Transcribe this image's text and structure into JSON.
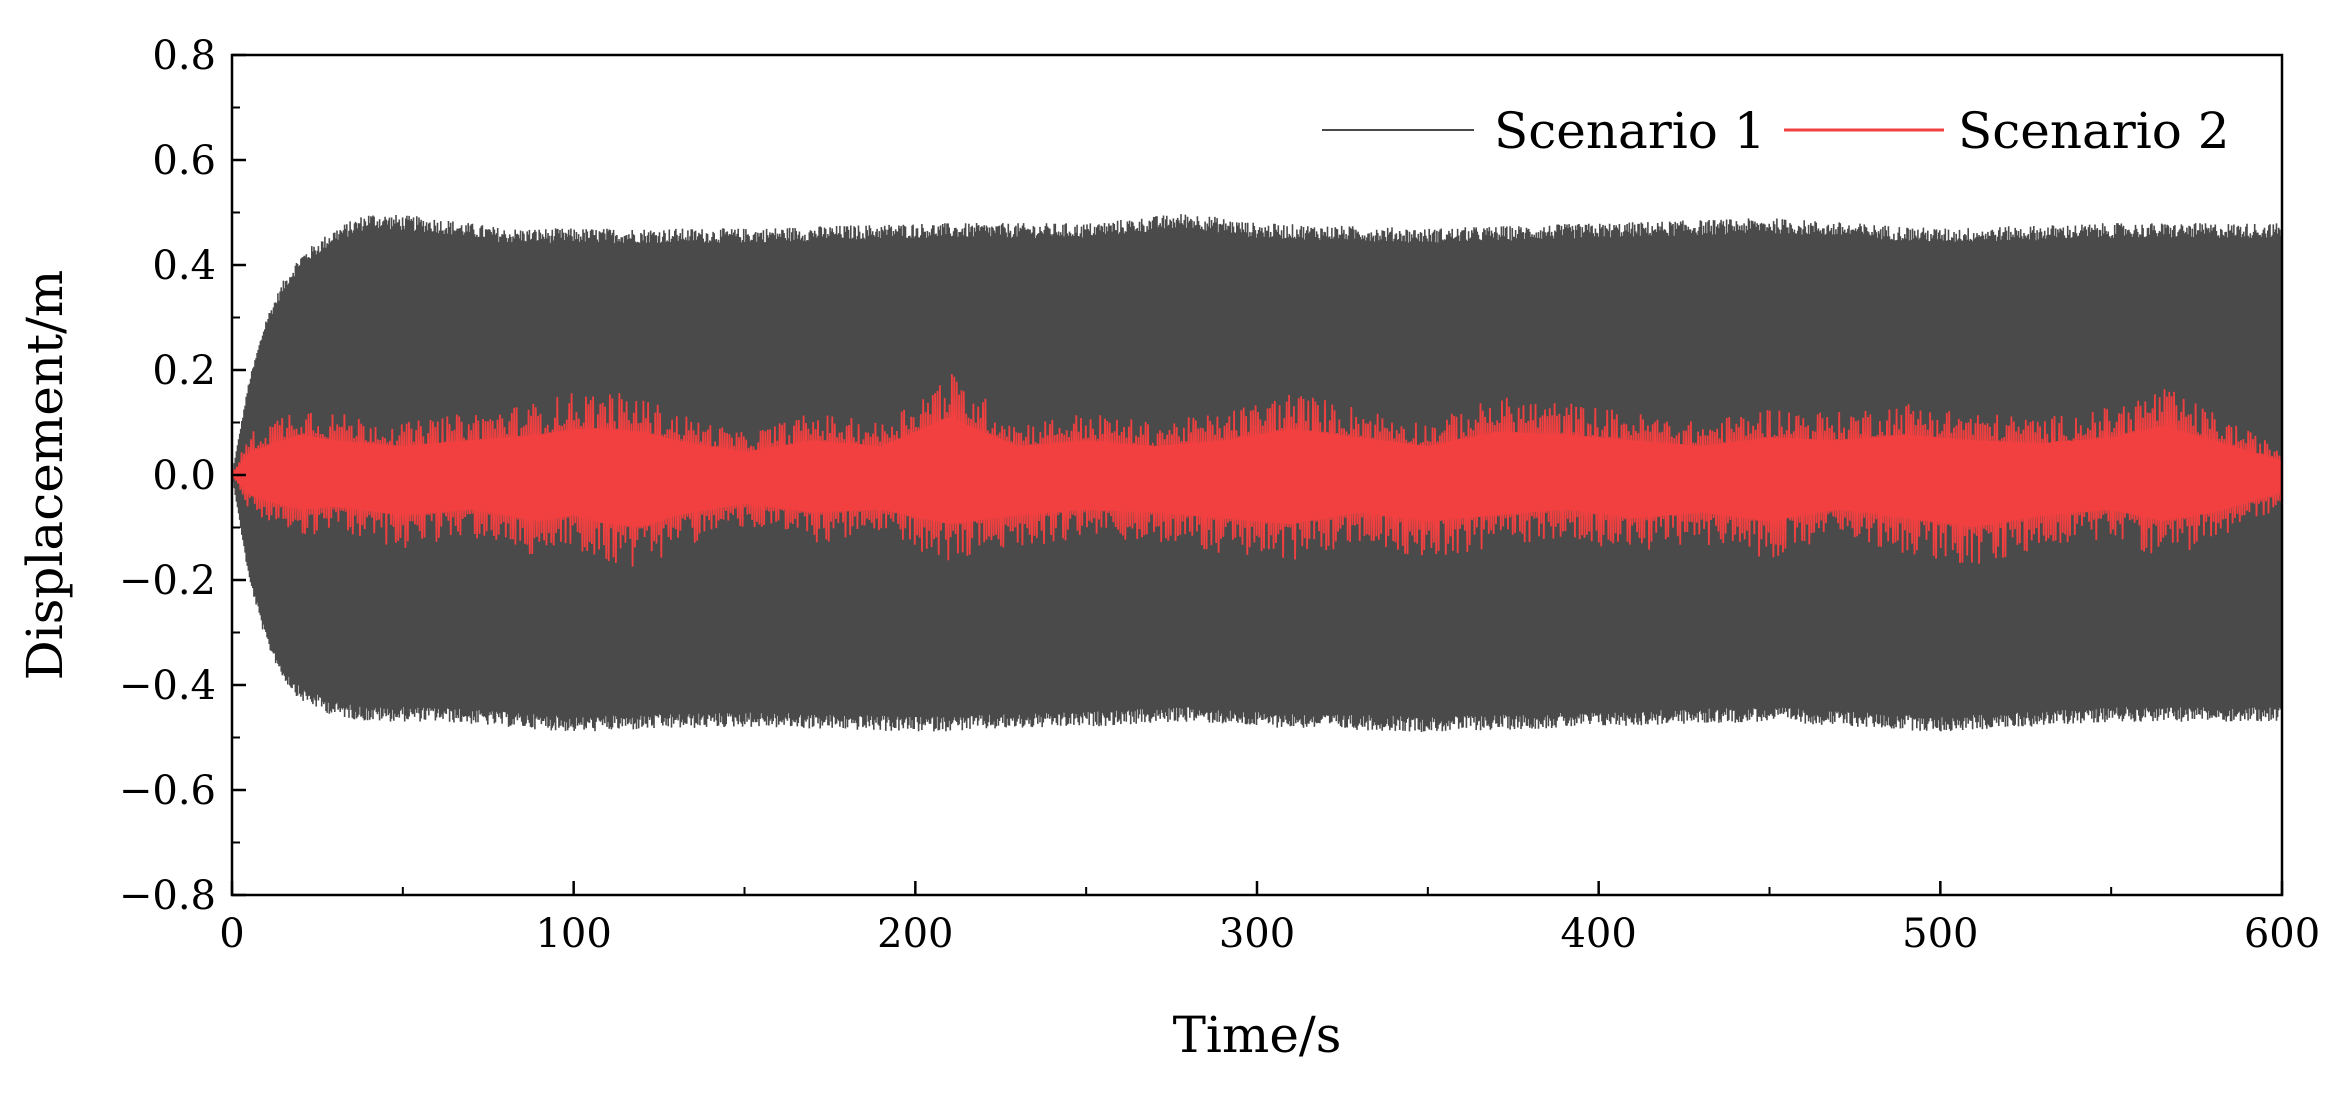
{
  "chart_data": {
    "type": "line",
    "title": "",
    "xlabel": "Time/s",
    "ylabel": "Displacement/m",
    "xlim": [
      0,
      600
    ],
    "ylim": [
      -0.8,
      0.8
    ],
    "xticks": [
      0,
      100,
      200,
      300,
      400,
      500,
      600
    ],
    "xtick_labels": [
      "0",
      "100",
      "200",
      "300",
      "400",
      "500",
      "600"
    ],
    "yticks": [
      -0.8,
      -0.6,
      -0.4,
      -0.2,
      0.0,
      0.2,
      0.4,
      0.6,
      0.8
    ],
    "ytick_labels": [
      "−0.8",
      "−0.6",
      "−0.4",
      "−0.2",
      "0.0",
      "0.2",
      "0.4",
      "0.6",
      "0.8"
    ],
    "grid": false,
    "legend_position": "top-right",
    "series": [
      {
        "name": "Scenario 1",
        "color": "#4a4a4a",
        "amplitude_envelope": {
          "t": [
            0,
            5,
            10,
            15,
            20,
            30,
            40,
            60,
            80,
            100,
            150,
            200,
            250,
            280,
            300,
            350,
            400,
            450,
            500,
            550,
            600
          ],
          "upper": [
            0.0,
            0.18,
            0.3,
            0.37,
            0.42,
            0.47,
            0.5,
            0.49,
            0.47,
            0.47,
            0.47,
            0.48,
            0.48,
            0.5,
            0.48,
            0.47,
            0.48,
            0.49,
            0.47,
            0.48,
            0.48
          ],
          "lower": [
            0.0,
            -0.2,
            -0.32,
            -0.39,
            -0.43,
            -0.46,
            -0.47,
            -0.47,
            -0.48,
            -0.49,
            -0.48,
            -0.49,
            -0.48,
            -0.47,
            -0.48,
            -0.49,
            -0.48,
            -0.47,
            -0.49,
            -0.47,
            -0.47
          ]
        },
        "inner_band": {
          "t": [
            0,
            20,
            50,
            100,
            150,
            200,
            250,
            300,
            350,
            400,
            450,
            500,
            550,
            600
          ],
          "upper": [
            0.0,
            0.14,
            0.17,
            0.2,
            0.18,
            0.2,
            0.22,
            0.21,
            0.18,
            0.2,
            0.24,
            0.19,
            0.2,
            0.22
          ],
          "lower": [
            0.0,
            -0.14,
            -0.16,
            -0.2,
            -0.18,
            -0.2,
            -0.2,
            -0.2,
            -0.18,
            -0.2,
            -0.22,
            -0.2,
            -0.2,
            -0.22
          ]
        }
      },
      {
        "name": "Scenario 2",
        "color": "#f24040",
        "amplitude_envelope": {
          "t": [
            0,
            5,
            10,
            20,
            30,
            50,
            70,
            90,
            100,
            110,
            120,
            130,
            150,
            170,
            190,
            210,
            230,
            250,
            270,
            290,
            310,
            330,
            350,
            370,
            390,
            410,
            430,
            450,
            470,
            490,
            510,
            530,
            550,
            565,
            580,
            600
          ],
          "upper": [
            0.0,
            0.08,
            0.1,
            0.14,
            0.12,
            0.1,
            0.12,
            0.14,
            0.16,
            0.16,
            0.15,
            0.12,
            0.08,
            0.12,
            0.1,
            0.2,
            0.1,
            0.12,
            0.1,
            0.12,
            0.16,
            0.13,
            0.1,
            0.15,
            0.14,
            0.12,
            0.1,
            0.13,
            0.12,
            0.14,
            0.12,
            0.11,
            0.13,
            0.17,
            0.12,
            0.05
          ],
          "lower": [
            0.0,
            -0.07,
            -0.09,
            -0.12,
            -0.11,
            -0.14,
            -0.12,
            -0.16,
            -0.14,
            -0.17,
            -0.18,
            -0.14,
            -0.1,
            -0.13,
            -0.12,
            -0.17,
            -0.14,
            -0.12,
            -0.13,
            -0.15,
            -0.17,
            -0.13,
            -0.16,
            -0.14,
            -0.12,
            -0.15,
            -0.13,
            -0.16,
            -0.12,
            -0.15,
            -0.18,
            -0.14,
            -0.12,
            -0.16,
            -0.13,
            -0.06
          ]
        }
      }
    ]
  }
}
